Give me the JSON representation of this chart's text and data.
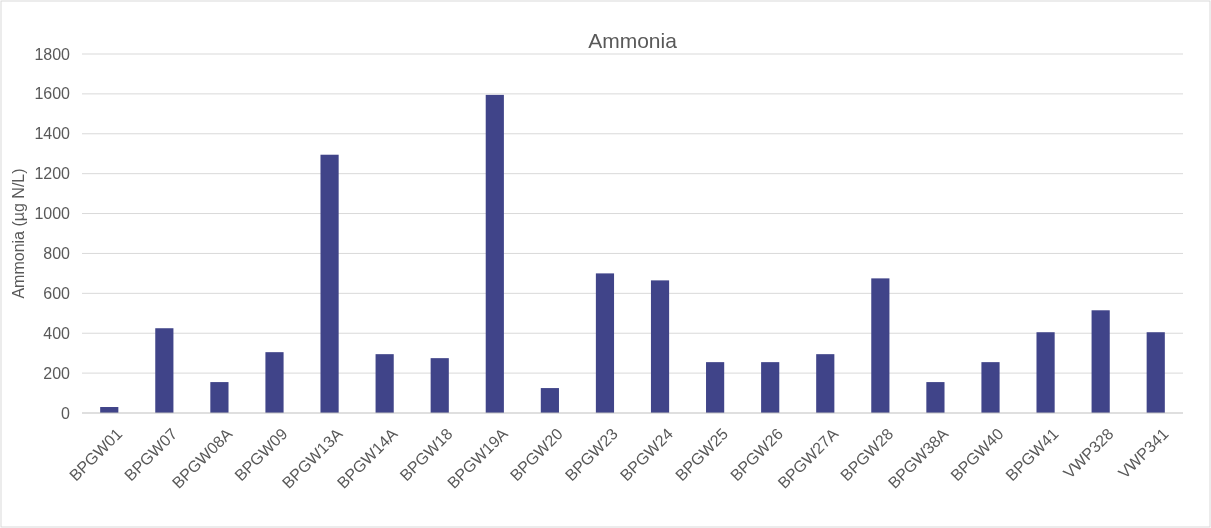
{
  "chart_data": {
    "type": "bar",
    "title": "Ammonia",
    "ylabel": "Ammonia (µg N/L)",
    "categories": [
      "BPGW01",
      "BPGW07",
      "BPGW08A",
      "BPGW09",
      "BPGW13A",
      "BPGW14A",
      "BPGW18",
      "BPGW19A",
      "BPGW20",
      "BPGW23",
      "BPGW24",
      "BPGW25",
      "BPGW26",
      "BPGW27A",
      "BPGW28",
      "BPGW38A",
      "BPGW40",
      "BPGW41",
      "VWP328",
      "VWP341"
    ],
    "values": [
      30,
      425,
      155,
      305,
      1295,
      295,
      275,
      1595,
      125,
      700,
      665,
      255,
      255,
      295,
      675,
      155,
      255,
      405,
      515,
      405
    ],
    "color": "#404489",
    "ylim": [
      0,
      1800
    ],
    "yticks": [
      0,
      200,
      400,
      600,
      800,
      1000,
      1200,
      1400,
      1600,
      1800
    ],
    "grid": "y"
  }
}
